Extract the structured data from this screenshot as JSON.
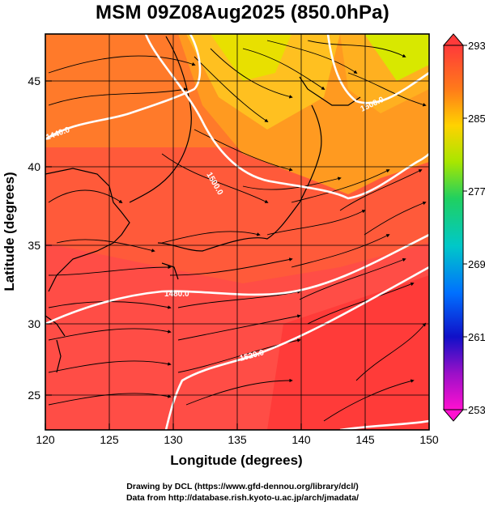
{
  "title": "MSM 09Z08Aug2025 (850.0hPa)",
  "map": {
    "xlabel": "Longitude (degrees)",
    "ylabel": "Latitude  (degrees)",
    "xticks": [
      "120",
      "125",
      "130",
      "135",
      "140",
      "145",
      "150"
    ],
    "yticks": [
      "25",
      "30",
      "35",
      "40",
      "45"
    ],
    "lon_range": [
      120,
      150
    ],
    "lat_range": [
      22.4,
      47.6
    ],
    "contour_labels": [
      "1440.0",
      "1500.0",
      "1480.0",
      "1520.0",
      "1500.0"
    ],
    "colorbar": {
      "ticks": [
        "293",
        "285",
        "277",
        "269",
        "261",
        "253"
      ],
      "min": 253,
      "max": 293
    }
  },
  "credits": [
    "Drawing by DCL (https://www.gfd-dennou.org/library/dcl/)",
    "Data from http://database.rish.kyoto-u.ac.jp/arch/jmadata/"
  ]
}
